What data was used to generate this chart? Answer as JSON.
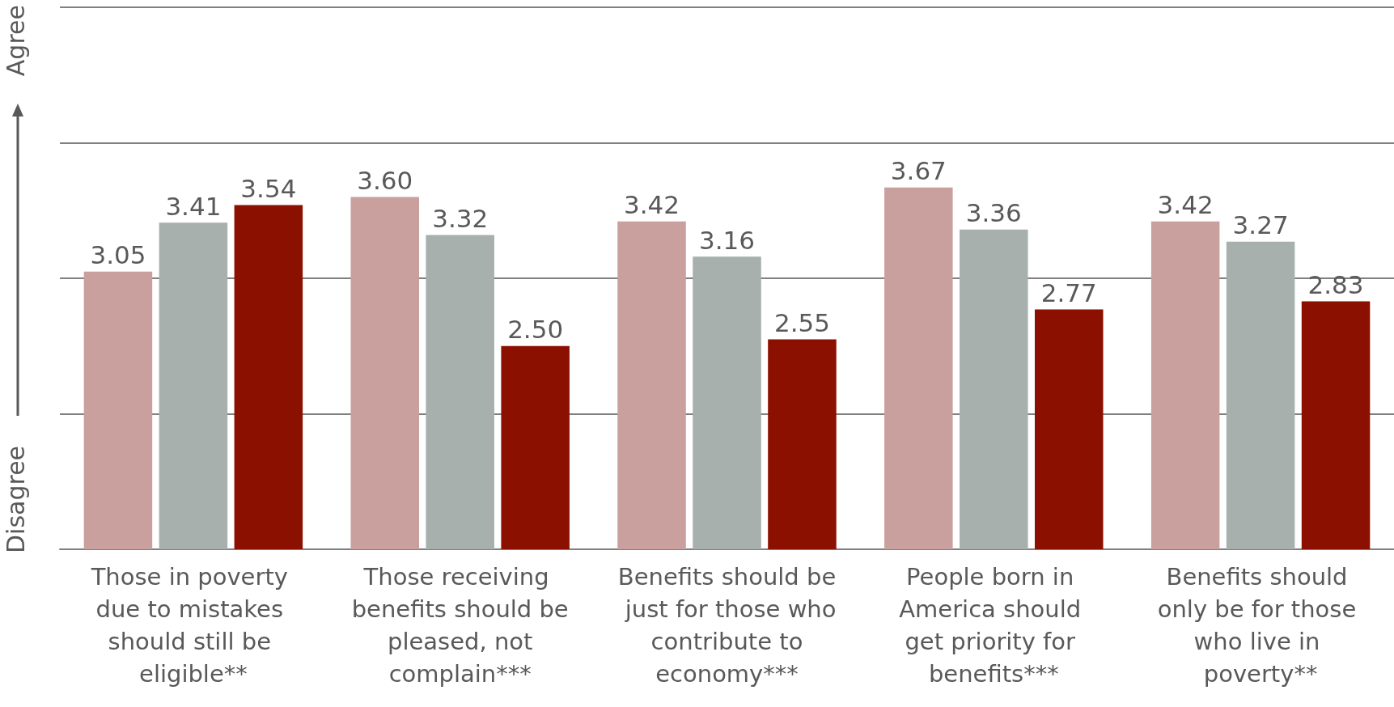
{
  "chart_data": {
    "type": "bar",
    "categories": [
      "Those in poverty due to mistakes should still be eligible**",
      "Those receiving benefits should be pleased, not complain***",
      "Benefits should be just for those who contribute to economy***",
      "People born in America should get priority for benefits***",
      "Benefits should only be for those who live in poverty**"
    ],
    "series": [
      {
        "color": "#c9a09e",
        "values": [
          3.05,
          3.6,
          3.42,
          3.67,
          3.42
        ],
        "value_labels": [
          "3.05",
          "3.60",
          "3.42",
          "3.67",
          "3.42"
        ]
      },
      {
        "color": "#a7b0ad",
        "values": [
          3.41,
          3.32,
          3.16,
          3.36,
          3.27
        ],
        "value_labels": [
          "3.41",
          "3.32",
          "3.16",
          "3.36",
          "3.27"
        ]
      },
      {
        "color": "#8b1000",
        "values": [
          3.54,
          2.5,
          2.55,
          2.77,
          2.83
        ],
        "value_labels": [
          "3.54",
          "2.50",
          "2.55",
          "2.77",
          "2.83"
        ]
      }
    ],
    "ylim": [
      1,
      5
    ],
    "yticks": [
      {
        "value": 1,
        "label": null
      },
      {
        "value": 2,
        "label": null
      },
      {
        "value": 3,
        "label": null
      },
      {
        "value": 4,
        "label": null
      },
      {
        "value": 5,
        "label": null
      }
    ],
    "grid": "y",
    "tick_labels": "x",
    "annotations": [
      "Disagree",
      "Agree"
    ]
  }
}
